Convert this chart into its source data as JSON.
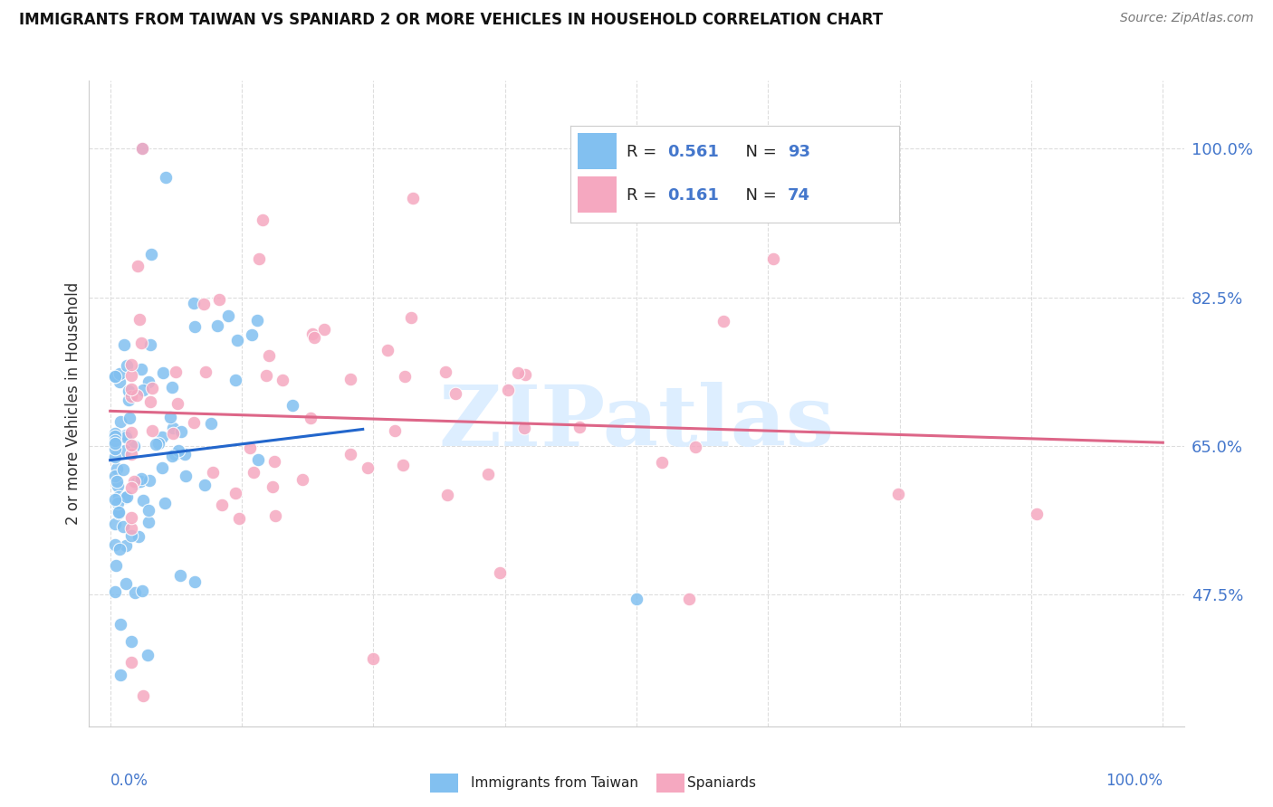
{
  "title": "IMMIGRANTS FROM TAIWAN VS SPANIARD 2 OR MORE VEHICLES IN HOUSEHOLD CORRELATION CHART",
  "source": "Source: ZipAtlas.com",
  "ylabel": "2 or more Vehicles in Household",
  "ytick_labels": [
    "47.5%",
    "65.0%",
    "82.5%",
    "100.0%"
  ],
  "ytick_values": [
    0.475,
    0.65,
    0.825,
    1.0
  ],
  "ymin": 0.32,
  "ymax": 1.08,
  "xmin": -0.002,
  "xmax": 0.102,
  "legend_blue_R": "0.561",
  "legend_blue_N": "93",
  "legend_pink_R": "0.161",
  "legend_pink_N": "74",
  "blue_color": "#82c0f0",
  "pink_color": "#f5a8c0",
  "blue_trend_color": "#2266cc",
  "pink_trend_color": "#dd6688",
  "watermark": "ZIPatlas",
  "watermark_color": "#ddeeff",
  "label_color": "#4477cc"
}
